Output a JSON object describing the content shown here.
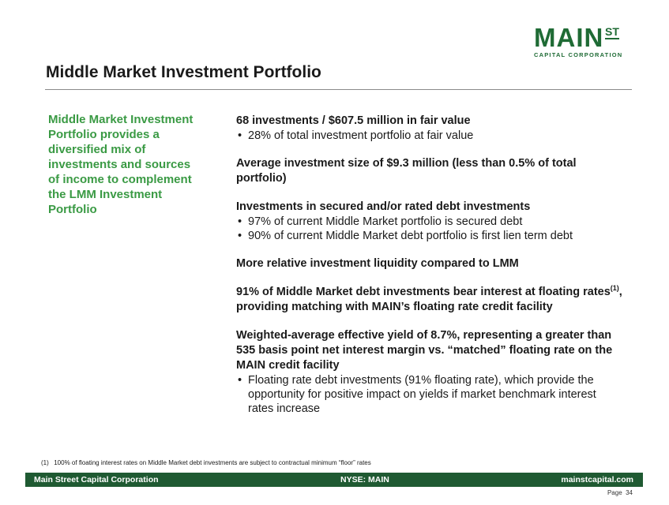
{
  "logo": {
    "main": "MAIN",
    "st": "ST",
    "sub": "CAPITAL CORPORATION"
  },
  "title": "Middle Market Investment Portfolio",
  "sidebar": {
    "text": "Middle Market Investment Portfolio provides a diversified mix of investments and sources of income to complement the LMM Investment Portfolio"
  },
  "sections": [
    {
      "heading": "68 investments / $607.5 million in fair value",
      "bullets": [
        "28% of total investment portfolio at fair value"
      ]
    },
    {
      "heading": "Average investment size of $9.3 million (less than 0.5% of total portfolio)",
      "bullets": []
    },
    {
      "heading": "Investments in secured and/or rated debt investments",
      "bullets": [
        "97% of current Middle Market portfolio is secured debt",
        "90% of current Middle Market debt portfolio is first lien term debt"
      ]
    },
    {
      "heading": "More relative investment liquidity compared to LMM",
      "bullets": []
    },
    {
      "heading_pre": "91% of Middle Market debt investments bear interest at floating rates",
      "heading_sup": "(1)",
      "heading_post": ", providing matching with MAIN’s floating rate credit facility",
      "bullets": []
    },
    {
      "heading": "Weighted-average effective yield of 8.7%, representing a greater than 535 basis point net interest margin vs. “matched” floating rate on the MAIN credit facility",
      "bullets": [
        "Floating rate debt investments (91% floating rate), which provide the opportunity for positive impact on yields if market benchmark interest rates increase"
      ]
    }
  ],
  "footnote": {
    "number": "(1)",
    "text": "100% of floating interest rates on Middle Market debt investments are subject to contractual minimum “floor” rates"
  },
  "footer": {
    "left": "Main Street Capital Corporation",
    "center": "NYSE: MAIN",
    "right": "mainstcapital.com"
  },
  "page": {
    "label": "Page",
    "number": "34"
  },
  "colors": {
    "brand_green": "#1f6b35",
    "sidebar_green": "#3a9a44",
    "footer_bg": "#1f5a32"
  }
}
